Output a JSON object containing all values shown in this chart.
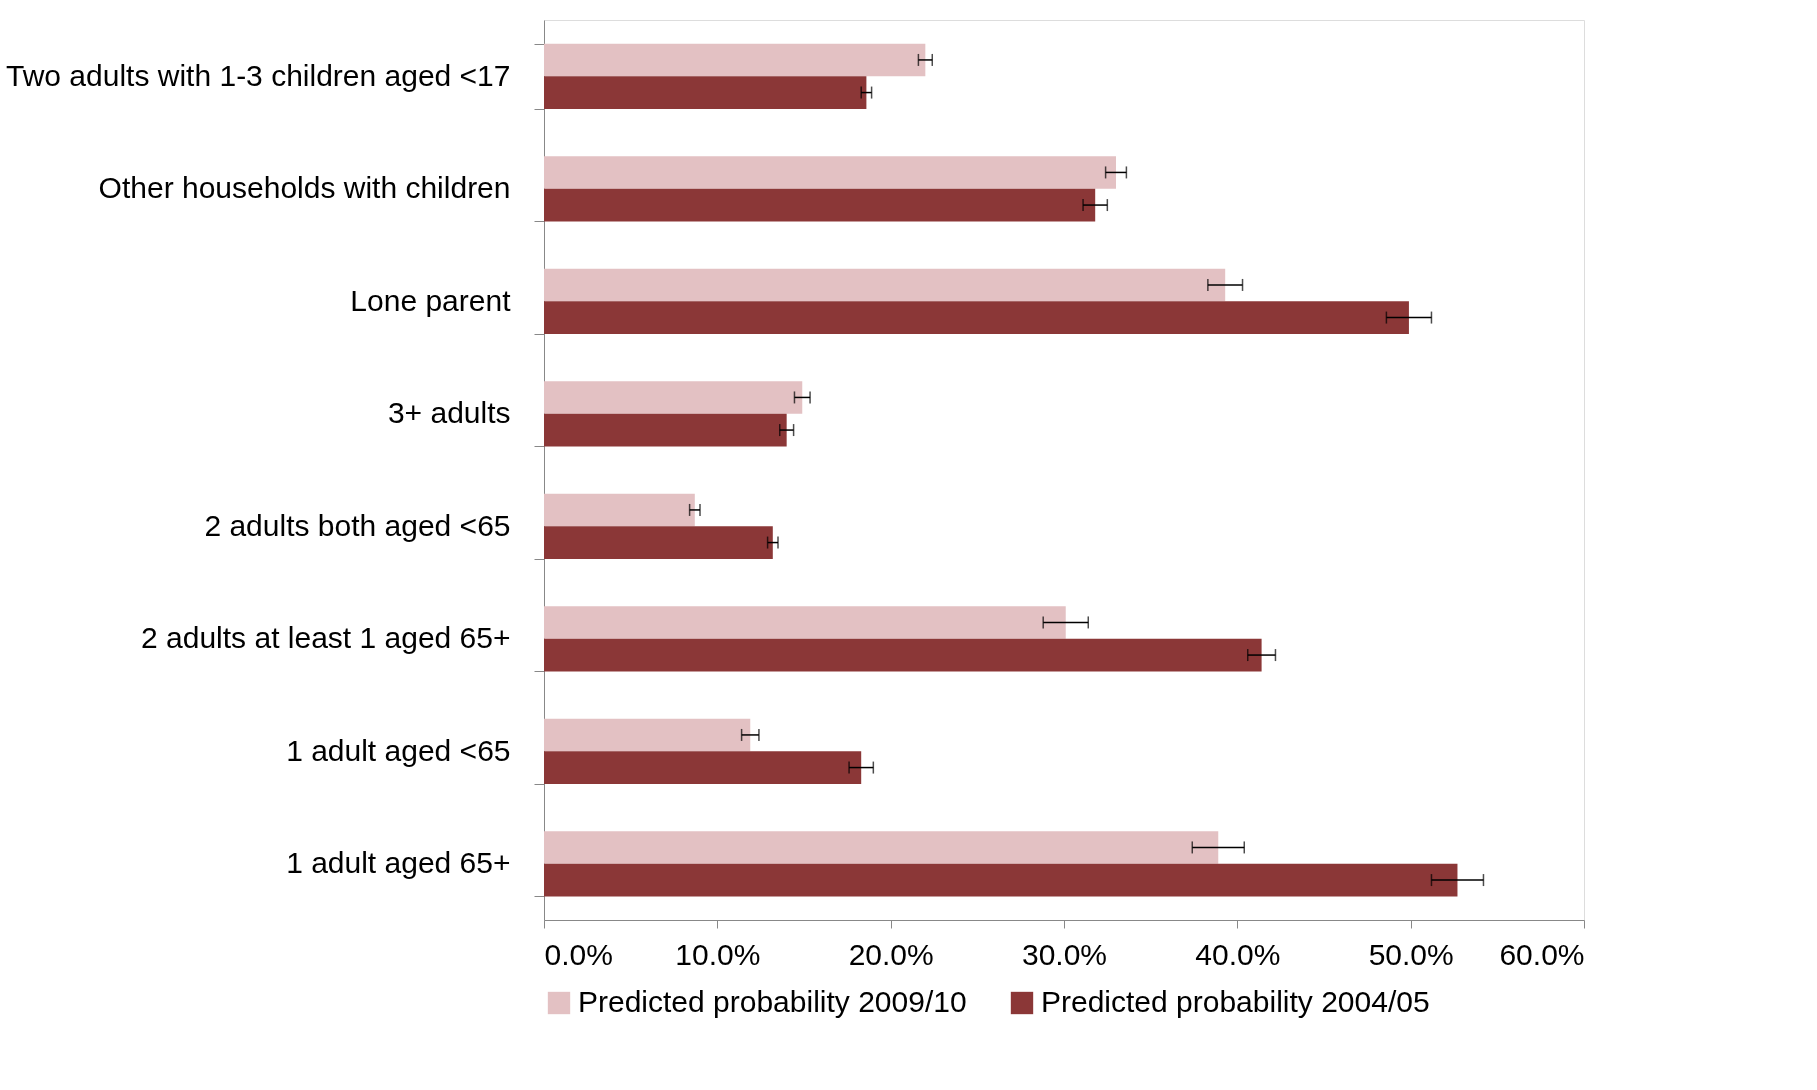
{
  "chart_data": {
    "type": "bar",
    "orientation": "horizontal",
    "categories": [
      "Two adults with 1-3 children aged <17",
      "Other households with children",
      "Lone parent",
      "3+ adults",
      "2 adults both aged <65",
      "2 adults at least 1 aged 65+",
      "1 adult aged <65",
      "1 adult aged 65+"
    ],
    "series": [
      {
        "name": "Predicted probability 2009/10",
        "color": "#e3c1c3",
        "values": [
          22.0,
          33.0,
          39.3,
          14.9,
          8.7,
          30.1,
          11.9,
          38.9
        ],
        "errors": [
          0.4,
          0.6,
          1.0,
          0.45,
          0.3,
          1.3,
          0.5,
          1.5
        ]
      },
      {
        "name": "Predicted probability 2004/05",
        "color": "#8b3737",
        "values": [
          18.6,
          31.8,
          49.9,
          14.0,
          13.2,
          41.4,
          18.3,
          52.7
        ],
        "errors": [
          0.3,
          0.7,
          1.3,
          0.4,
          0.3,
          0.8,
          0.7,
          1.5
        ]
      }
    ],
    "xlim": [
      0,
      60
    ],
    "xticks": [
      {
        "value": 0,
        "label": "0.0%"
      },
      {
        "value": 10,
        "label": "10.0%"
      },
      {
        "value": 20,
        "label": "20.0%"
      },
      {
        "value": 30,
        "label": "30.0%"
      },
      {
        "value": 40,
        "label": "40.0%"
      },
      {
        "value": 50,
        "label": "50.0%"
      },
      {
        "value": 60,
        "label": "60.0%"
      }
    ],
    "grid": false,
    "legend": "bottom"
  }
}
